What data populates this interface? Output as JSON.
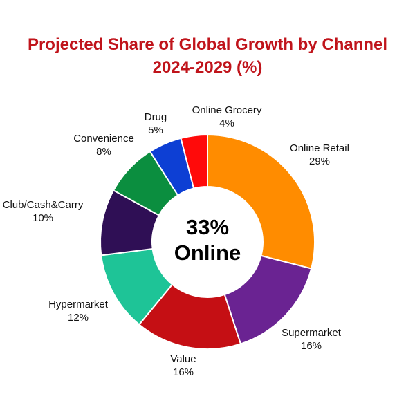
{
  "chart_data": {
    "type": "pie",
    "title_lines": [
      "Projected Share of Global Growth by Channel",
      "2024-2029 (%)"
    ],
    "center_label": [
      "33%",
      "Online"
    ],
    "slices": [
      {
        "label": "Online Retail",
        "value": 29,
        "value_label": "29%",
        "color": "#ff8c00"
      },
      {
        "label": "Supermarket",
        "value": 16,
        "value_label": "16%",
        "color": "#6a2392"
      },
      {
        "label": "Value",
        "value": 16,
        "value_label": "16%",
        "color": "#c50f14"
      },
      {
        "label": "Hypermarket",
        "value": 12,
        "value_label": "12%",
        "color": "#1ec497"
      },
      {
        "label": "Club/Cash&Carry",
        "value": 10,
        "value_label": "10%",
        "color": "#2f0f55"
      },
      {
        "label": "Convenience",
        "value": 8,
        "value_label": "8%",
        "color": "#0b8e3f"
      },
      {
        "label": "Drug",
        "value": 5,
        "value_label": "5%",
        "color": "#0d3fd4"
      },
      {
        "label": "Online Grocery",
        "value": 4,
        "value_label": "4%",
        "color": "#ff0a0a"
      }
    ]
  }
}
